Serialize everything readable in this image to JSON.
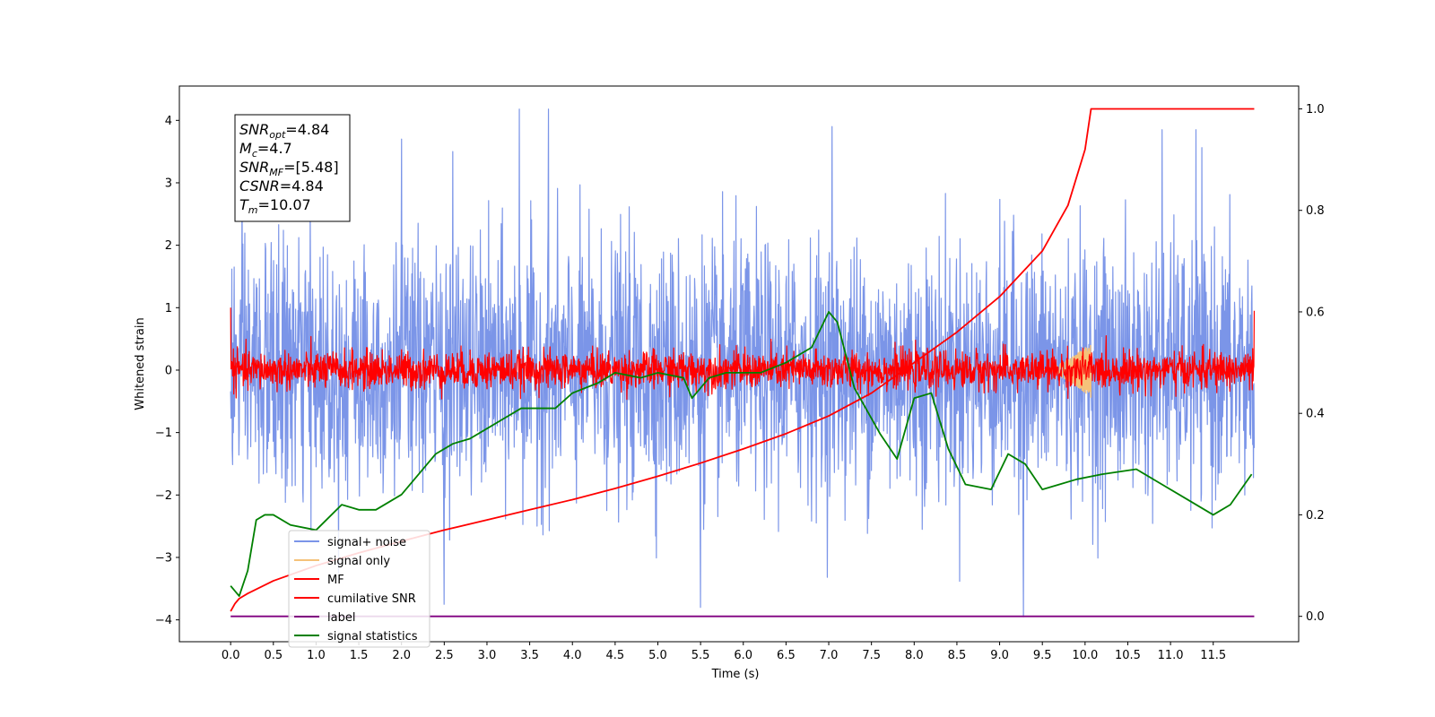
{
  "chart_data": {
    "type": "line",
    "xlabel": "Time (s)",
    "ylabel": "Whitened strain",
    "ylabel_right": "",
    "xlim": [
      -0.6,
      12.5
    ],
    "ylim": [
      -4.35,
      4.55
    ],
    "ylim_right": [
      -0.05,
      1.045
    ],
    "x_ticks": [
      0.0,
      0.5,
      1.0,
      1.5,
      2.0,
      2.5,
      3.0,
      3.5,
      4.0,
      4.5,
      5.0,
      5.5,
      6.0,
      6.5,
      7.0,
      7.5,
      8.0,
      8.5,
      9.0,
      9.5,
      10.0,
      10.5,
      11.0,
      11.5
    ],
    "y_ticks_left": [
      4,
      3,
      2,
      1,
      0,
      -1,
      -2,
      -3,
      -4
    ],
    "y_ticks_right": [
      1.0,
      0.8,
      0.6,
      0.4,
      0.2,
      0.0
    ],
    "grid": false,
    "legend_position": "lower-left",
    "stats_box": [
      {
        "sym": "SNR",
        "sub": "opt",
        "value": "=4.84"
      },
      {
        "sym": "M",
        "sub": "c",
        "value": "=4.7"
      },
      {
        "sym": "SNR",
        "sub": "MF",
        "value": "=[5.48]"
      },
      {
        "sym": "CSNR",
        "sub": "",
        "value": "=4.84"
      },
      {
        "sym": "T",
        "sub": "m",
        "value": "=10.07"
      }
    ],
    "series": [
      {
        "name": "signal+ noise",
        "axis": "left",
        "color": "#7b95e8",
        "style": "noise",
        "x_range": [
          0.0,
          11.98
        ],
        "envelope_std": 1.0,
        "notable_peaks": [
          {
            "x": 3.38,
            "y": 4.18
          },
          {
            "x": 3.72,
            "y": 4.18
          },
          {
            "x": 2.0,
            "y": 3.7
          },
          {
            "x": 2.6,
            "y": 3.5
          },
          {
            "x": 7.04,
            "y": 3.9
          },
          {
            "x": 10.9,
            "y": 3.85
          },
          {
            "x": 11.3,
            "y": 3.85
          },
          {
            "x": 5.5,
            "y": -3.8
          },
          {
            "x": 9.28,
            "y": -3.95
          },
          {
            "x": 2.5,
            "y": -3.75
          }
        ]
      },
      {
        "name": "signal only",
        "axis": "left",
        "color": "#f5c27a",
        "style": "chirp",
        "x_range": [
          9.5,
          10.07
        ],
        "amplitude": 0.45
      },
      {
        "name": "MF",
        "axis": "left",
        "color": "#ff0000",
        "style": "noise",
        "x_range": [
          0.0,
          11.98
        ],
        "envelope_std": 0.15,
        "endpoints": [
          {
            "x": 0.0,
            "y": 1.0
          },
          {
            "x": 11.98,
            "y": 0.95
          }
        ]
      },
      {
        "name": "cumilative SNR",
        "axis": "right",
        "color": "#ff0000",
        "style": "line",
        "x": [
          0.0,
          0.05,
          0.1,
          0.2,
          0.5,
          1.0,
          1.5,
          2.0,
          2.5,
          3.0,
          3.5,
          4.0,
          4.5,
          5.0,
          5.5,
          6.0,
          6.5,
          7.0,
          7.5,
          8.0,
          8.5,
          9.0,
          9.5,
          9.8,
          10.0,
          10.07,
          10.5,
          11.0,
          11.5,
          11.98
        ],
        "values": [
          0.01,
          0.025,
          0.035,
          0.045,
          0.07,
          0.1,
          0.125,
          0.148,
          0.17,
          0.19,
          0.21,
          0.23,
          0.252,
          0.276,
          0.302,
          0.33,
          0.36,
          0.395,
          0.44,
          0.5,
          0.56,
          0.63,
          0.72,
          0.81,
          0.92,
          1.0,
          1.0,
          1.0,
          1.0,
          1.0
        ]
      },
      {
        "name": "label",
        "axis": "right",
        "color": "#800080",
        "style": "line",
        "x": [
          0.0,
          11.98
        ],
        "values": [
          0.0,
          0.0
        ]
      },
      {
        "name": "signal statistics",
        "axis": "right",
        "color": "#008000",
        "style": "line",
        "x": [
          0.0,
          0.1,
          0.2,
          0.25,
          0.3,
          0.4,
          0.5,
          0.7,
          1.0,
          1.3,
          1.5,
          1.7,
          2.0,
          2.2,
          2.4,
          2.6,
          2.8,
          3.0,
          3.2,
          3.4,
          3.6,
          3.8,
          4.0,
          4.3,
          4.5,
          4.8,
          5.0,
          5.3,
          5.4,
          5.6,
          5.8,
          6.2,
          6.5,
          6.8,
          7.0,
          7.1,
          7.3,
          7.6,
          7.8,
          8.0,
          8.2,
          8.4,
          8.6,
          8.9,
          9.1,
          9.3,
          9.5,
          9.7,
          9.9,
          10.2,
          10.6,
          10.9,
          11.2,
          11.5,
          11.7,
          11.95
        ],
        "values": [
          0.06,
          0.04,
          0.09,
          0.14,
          0.19,
          0.2,
          0.2,
          0.18,
          0.17,
          0.22,
          0.21,
          0.21,
          0.24,
          0.28,
          0.32,
          0.34,
          0.35,
          0.37,
          0.39,
          0.41,
          0.41,
          0.41,
          0.44,
          0.46,
          0.48,
          0.47,
          0.48,
          0.47,
          0.43,
          0.47,
          0.48,
          0.48,
          0.5,
          0.53,
          0.6,
          0.58,
          0.45,
          0.36,
          0.31,
          0.43,
          0.44,
          0.33,
          0.26,
          0.25,
          0.32,
          0.3,
          0.25,
          0.26,
          0.27,
          0.28,
          0.29,
          0.26,
          0.23,
          0.2,
          0.22,
          0.28
        ]
      }
    ]
  }
}
